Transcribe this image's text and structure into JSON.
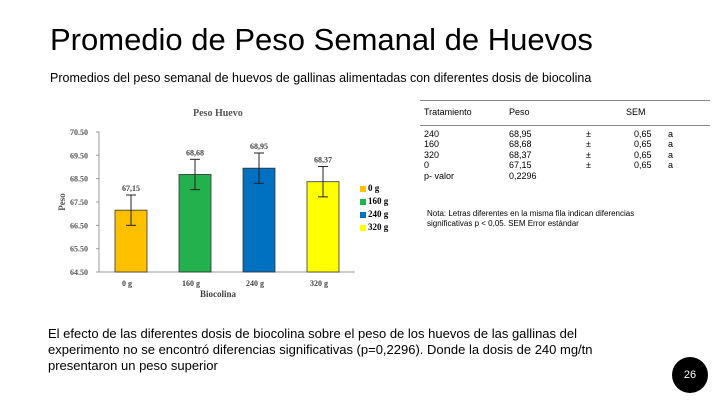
{
  "slide": {
    "title": "Promedio de Peso Semanal de Huevos",
    "subtitle": "Promedios del peso semanal de huevos de gallinas alimentadas con diferentes dosis de biocolina",
    "page_number": "26",
    "body": "El efecto de las diferentes dosis de biocolina sobre el peso de los huevos de las gallinas del experimento no se encontró diferencias significativas (p=0,2296). Donde la dosis de 240 mg/tn presentaron un peso superior"
  },
  "chart_data": {
    "type": "bar",
    "title": "Peso Huevo",
    "xlabel": "Biocolina",
    "ylabel": "Peso",
    "categories": [
      "0 g",
      "160 g",
      "240 g",
      "320 g"
    ],
    "values": [
      67.15,
      68.68,
      68.95,
      68.37
    ],
    "data_labels": [
      "67,15",
      "68,68",
      "68,95",
      "68,37"
    ],
    "errors": [
      0.65,
      0.65,
      0.65,
      0.65
    ],
    "ylim": [
      64.5,
      70.5
    ],
    "yticks": [
      64.5,
      65.5,
      66.5,
      67.5,
      68.5,
      69.5,
      70.5
    ],
    "ytick_labels": [
      "64.50",
      "65.50",
      "66.50",
      "67.50",
      "68.50",
      "69.50",
      "70.50"
    ],
    "colors": [
      "#FFC000",
      "#22B14C",
      "#0070C0",
      "#FFFF00"
    ],
    "grid": false,
    "legend": {
      "placement": "right",
      "entries": [
        "0 g",
        "160 g",
        "240 g",
        "320 g"
      ],
      "colors": [
        "#FFC000",
        "#22B14C",
        "#0070C0",
        "#FFFF00"
      ]
    }
  },
  "table": {
    "headers": {
      "tratamiento": "Tratamiento",
      "peso": "Peso",
      "sem": "SEM"
    },
    "tratamiento": [
      "240",
      "160",
      "320",
      "0",
      "p- valor"
    ],
    "peso": [
      "68,95",
      "68,68",
      "68,37",
      "67,15",
      "0,2296"
    ],
    "pm": [
      "±",
      "±",
      "±",
      "±"
    ],
    "sem": [
      "0,65",
      "0,65",
      "0,65",
      "0,65"
    ],
    "letters": [
      "a",
      "a",
      "a",
      "a"
    ]
  },
  "note": "Nota: Letras diferentes en la misma fila indican diferencias significativas p < 0,05. SEM Error estándar"
}
